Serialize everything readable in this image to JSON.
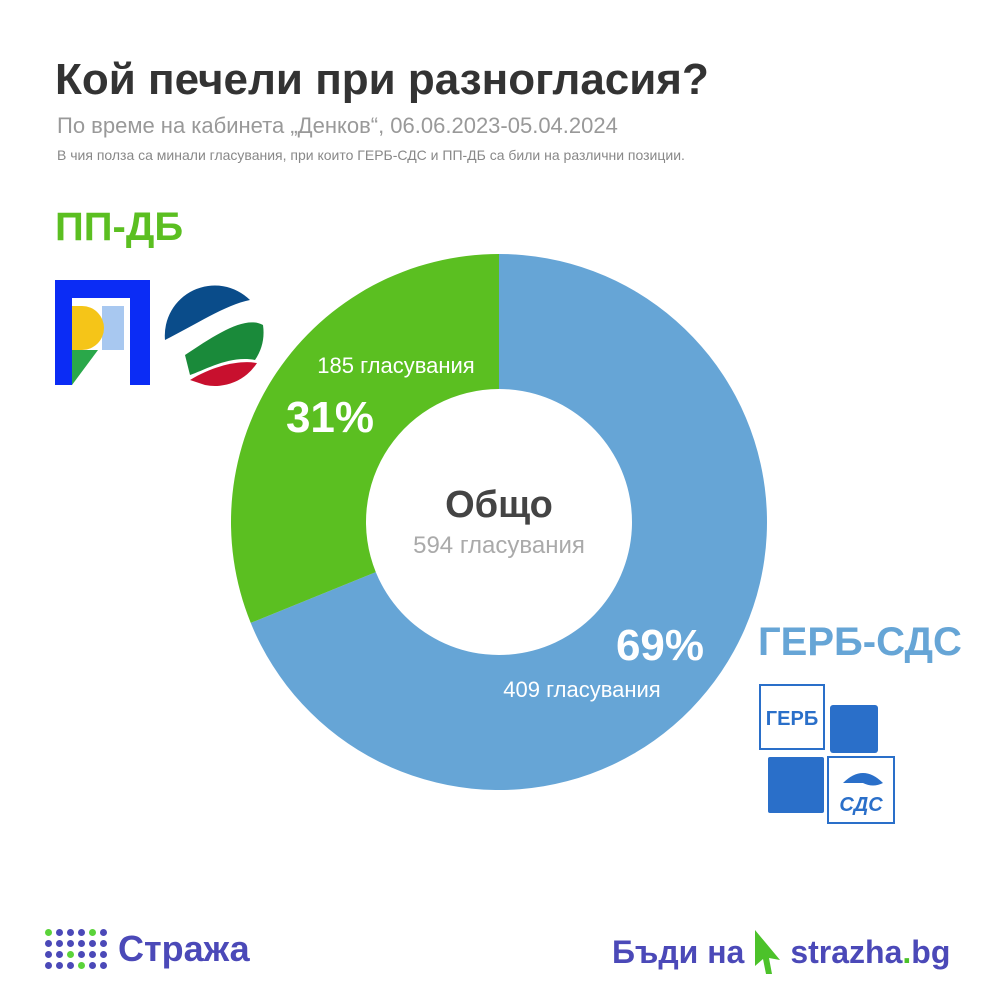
{
  "header": {
    "title": "Кой печели при разногласия?",
    "subtitle": "По време на кабинета „Денков“, 06.06.2023-05.04.2024",
    "note": "В чия полза са минали гласувания, при които ГЕРБ-СДС и ПП-ДБ са били на различни позиции."
  },
  "chart_data": {
    "type": "pie",
    "subtype": "donut",
    "title": "Кой печели при разногласия?",
    "center": {
      "label": "Общо",
      "value": "594 гласувания"
    },
    "slices": [
      {
        "name": "ГЕРБ-СДС",
        "value": 409,
        "percent": "69%",
        "label": "409 гласувания",
        "color": "#66a5d6"
      },
      {
        "name": "ПП-ДБ",
        "value": 185,
        "percent": "31%",
        "label": "185 гласувания",
        "color": "#5bbf21"
      }
    ]
  },
  "logos": {
    "gerb": "ГЕРБ",
    "sds": "СДС"
  },
  "footer": {
    "brand": "Стража",
    "cta": "Бъди на",
    "site_main": "strazha",
    "site_dot": ".",
    "site_tld": "bg"
  }
}
